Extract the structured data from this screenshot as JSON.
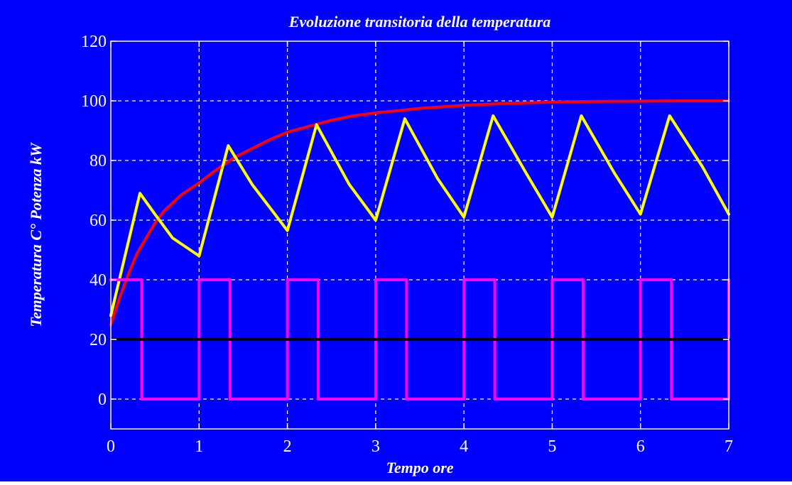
{
  "colors": {
    "background": "#0000ff",
    "axes": "#ffffff",
    "grid": "#ffffff",
    "text": "#ffffff"
  },
  "chart_data": {
    "type": "line",
    "title": "Evoluzione transitoria della temperatura",
    "xlabel": "Tempo ore",
    "ylabel": "Temperatura C°  Potenza kW",
    "xlim": [
      0,
      7
    ],
    "ylim": [
      -10,
      120
    ],
    "xticks": [
      "0",
      "1",
      "2",
      "3",
      "4",
      "5",
      "6",
      "7"
    ],
    "yticks": [
      "0",
      "20",
      "40",
      "60",
      "80",
      "100",
      "120"
    ],
    "grid": true,
    "series": [
      {
        "color": "#ff0000",
        "x": [
          0,
          0.1,
          0.2,
          0.3,
          0.4,
          0.5,
          0.6,
          0.8,
          1.0,
          1.2,
          1.4,
          1.6,
          1.8,
          2.0,
          2.25,
          2.5,
          2.75,
          3.0,
          3.25,
          3.5,
          3.75,
          4.0,
          4.5,
          5.0,
          5.5,
          6.0,
          6.5,
          7.0
        ],
        "y": [
          25,
          34,
          42,
          49,
          54,
          59,
          63,
          68.5,
          72.5,
          77,
          81,
          84,
          87,
          89.5,
          91.5,
          93.5,
          95,
          96,
          96.7,
          97.5,
          98,
          98.5,
          99.2,
          99.6,
          99.8,
          99.9,
          100,
          100
        ]
      },
      {
        "color": "#ffff00",
        "x": [
          0,
          0.33,
          0.5,
          0.7,
          1.0,
          1.33,
          1.6,
          2.0,
          2.33,
          2.7,
          3.0,
          3.33,
          3.7,
          4.0,
          4.33,
          4.7,
          5.0,
          5.33,
          5.7,
          6.0,
          6.33,
          6.7,
          7.0
        ],
        "y": [
          28,
          69,
          62,
          54,
          48,
          85,
          72,
          56.5,
          92,
          72,
          60,
          94,
          74,
          61,
          95,
          76,
          61,
          95,
          76,
          62,
          95,
          78,
          62
        ]
      },
      {
        "color": "#ff00ff",
        "x": [
          0,
          0.35,
          0.35,
          1.0,
          1.0,
          1.35,
          1.35,
          2.0,
          2.0,
          2.35,
          2.35,
          3.0,
          3.0,
          3.35,
          3.35,
          4.0,
          4.0,
          4.35,
          4.35,
          5.0,
          5.0,
          5.35,
          5.35,
          6.0,
          6.0,
          6.35,
          6.35,
          7.0,
          7.0
        ],
        "y": [
          40,
          40,
          0,
          0,
          40,
          40,
          0,
          0,
          40,
          40,
          0,
          0,
          40,
          40,
          0,
          0,
          40,
          40,
          0,
          0,
          40,
          40,
          0,
          0,
          40,
          40,
          0,
          0,
          40
        ]
      },
      {
        "color": "#000000",
        "x": [
          0,
          7
        ],
        "y": [
          20,
          20
        ]
      }
    ]
  }
}
